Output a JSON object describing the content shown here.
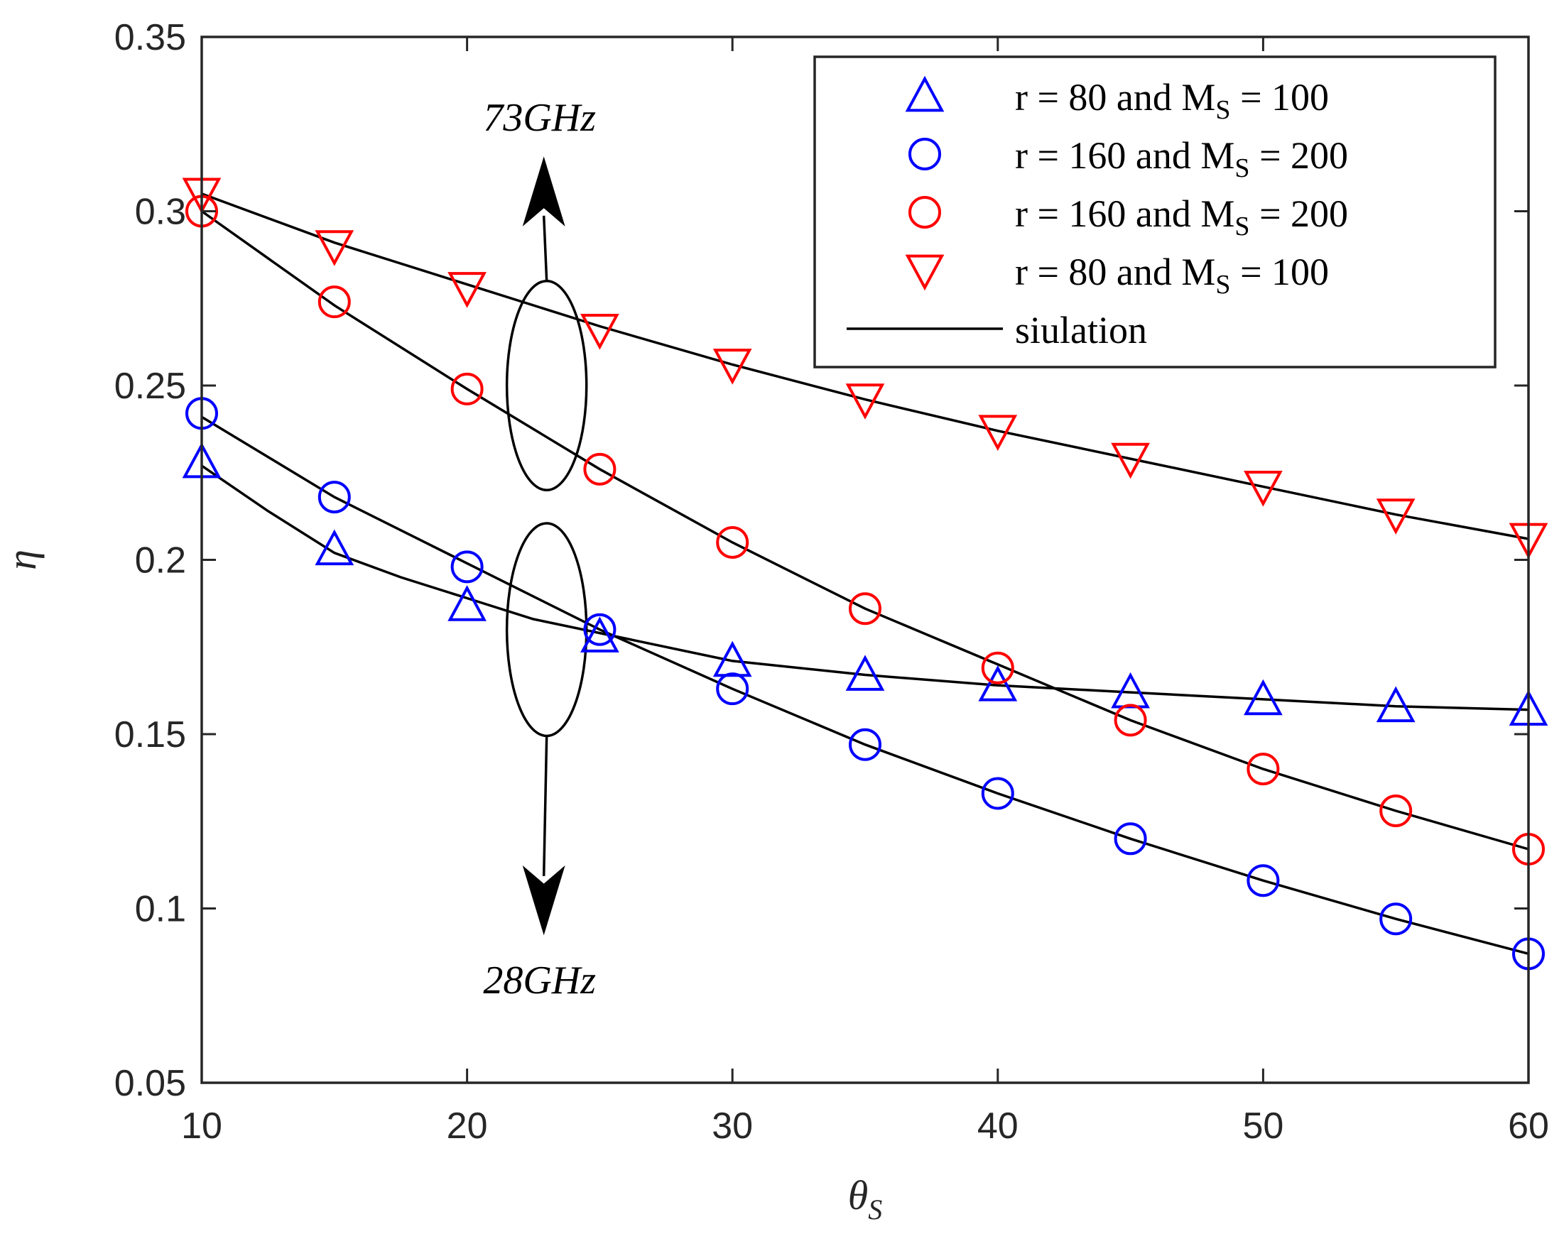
{
  "chart_data": {
    "type": "line",
    "title": "",
    "xlabel": "θ",
    "xlabel_sub": "S",
    "ylabel": "η",
    "xlim": [
      10,
      60
    ],
    "ylim": [
      0.05,
      0.35
    ],
    "xticks": [
      "10",
      "20",
      "30",
      "40",
      "50",
      "60"
    ],
    "yticks": [
      "0.05",
      "0.1",
      "0.15",
      "0.2",
      "0.25",
      "0.3",
      "0.35"
    ],
    "grid": false,
    "legend_position": "top-right",
    "x": [
      10,
      15,
      20,
      25,
      30,
      35,
      40,
      45,
      50,
      55,
      60
    ],
    "series": [
      {
        "name": "r = 80 and M_S = 100",
        "legend_main": "r = 80 and M",
        "legend_sub": "S",
        "legend_tail": " = 100",
        "marker": "triangle-up",
        "color": "#0000ff",
        "values": [
          0.228,
          0.203,
          0.187,
          0.178,
          0.171,
          0.167,
          0.164,
          0.162,
          0.16,
          0.158,
          0.157
        ]
      },
      {
        "name": "r = 160 and M_S = 200",
        "legend_main": "r = 160 and M",
        "legend_sub": "S",
        "legend_tail": " = 200",
        "marker": "circle",
        "color": "#0000ff",
        "values": [
          0.242,
          0.218,
          0.198,
          0.18,
          0.163,
          0.147,
          0.133,
          0.12,
          0.108,
          0.097,
          0.087
        ]
      },
      {
        "name": "r = 160 and M_S = 200",
        "legend_main": "r = 160 and M",
        "legend_sub": "S",
        "legend_tail": " = 200",
        "marker": "circle",
        "color": "#ff0000",
        "values": [
          0.3,
          0.274,
          0.249,
          0.226,
          0.205,
          0.186,
          0.169,
          0.154,
          0.14,
          0.128,
          0.117
        ]
      },
      {
        "name": "r = 80 and M_S = 100",
        "legend_main": "r = 80 and M",
        "legend_sub": "S",
        "legend_tail": " = 100",
        "marker": "triangle-down",
        "color": "#ff0000",
        "values": [
          0.305,
          0.29,
          0.278,
          0.266,
          0.256,
          0.246,
          0.237,
          0.229,
          0.221,
          0.213,
          0.206
        ]
      }
    ],
    "simulation_legend": "siulation",
    "simulation_lines": [
      {
        "x": [
          10,
          12.5,
          15,
          17.5,
          20,
          22.5,
          25,
          30,
          35,
          40,
          45,
          50,
          55,
          60
        ],
        "values": [
          0.227,
          0.214,
          0.202,
          0.195,
          0.189,
          0.183,
          0.179,
          0.171,
          0.167,
          0.164,
          0.162,
          0.16,
          0.158,
          0.157
        ]
      },
      {
        "x": [
          10,
          15,
          20,
          25,
          30,
          35,
          40,
          45,
          50,
          55,
          60
        ],
        "values": [
          0.241,
          0.218,
          0.199,
          0.18,
          0.163,
          0.147,
          0.133,
          0.12,
          0.108,
          0.097,
          0.087
        ]
      },
      {
        "x": [
          10,
          15,
          20,
          25,
          30,
          35,
          40,
          45,
          50,
          55,
          60
        ],
        "values": [
          0.3,
          0.273,
          0.249,
          0.226,
          0.205,
          0.186,
          0.17,
          0.154,
          0.14,
          0.128,
          0.117
        ]
      },
      {
        "x": [
          10,
          15,
          20,
          25,
          30,
          35,
          40,
          45,
          50,
          55,
          60
        ],
        "values": [
          0.305,
          0.291,
          0.279,
          0.267,
          0.256,
          0.246,
          0.237,
          0.229,
          0.221,
          0.213,
          0.206
        ]
      }
    ],
    "annotations": [
      {
        "text": "73GHz",
        "direction": "up",
        "ellipse_center": [
          23,
          0.25
        ],
        "ellipse_y_range": [
          0.22,
          0.28
        ],
        "ellipse_x_range": [
          21.5,
          24.5
        ],
        "arrow_to_y": 0.315
      },
      {
        "text": "28GHz",
        "direction": "down",
        "ellipse_center": [
          23,
          0.18
        ],
        "ellipse_y_range": [
          0.149,
          0.21
        ],
        "ellipse_x_range": [
          21.5,
          24.5
        ],
        "arrow_to_y": 0.093
      }
    ]
  }
}
